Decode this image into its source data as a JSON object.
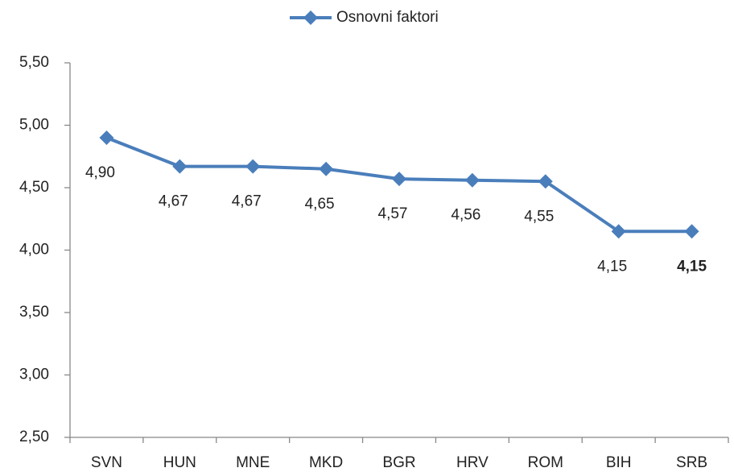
{
  "chart_data": {
    "type": "line",
    "categories": [
      "SVN",
      "HUN",
      "MNE",
      "MKD",
      "BGR",
      "HRV",
      "ROM",
      "BIH",
      "SRB"
    ],
    "series": [
      {
        "name": "Osnovni faktori",
        "color": "#4a7ebb",
        "values": [
          4.9,
          4.67,
          4.67,
          4.65,
          4.57,
          4.56,
          4.55,
          4.15,
          4.15
        ],
        "value_labels": [
          "4,90",
          "4,67",
          "4,67",
          "4,65",
          "4,57",
          "4,56",
          "4,55",
          "4,15",
          "4,15"
        ]
      }
    ],
    "ylim": [
      2.5,
      5.5
    ],
    "yticks": [
      {
        "value": 2.5,
        "label": "2,50"
      },
      {
        "value": 3,
        "label": "3,00"
      },
      {
        "value": 3.5,
        "label": "3,50"
      },
      {
        "value": 4,
        "label": "4,00"
      },
      {
        "value": 4.5,
        "label": "4,50"
      },
      {
        "value": 5,
        "label": "5,00"
      },
      {
        "value": 5.5,
        "label": "5,50"
      }
    ],
    "grid": false,
    "legend": "top"
  }
}
